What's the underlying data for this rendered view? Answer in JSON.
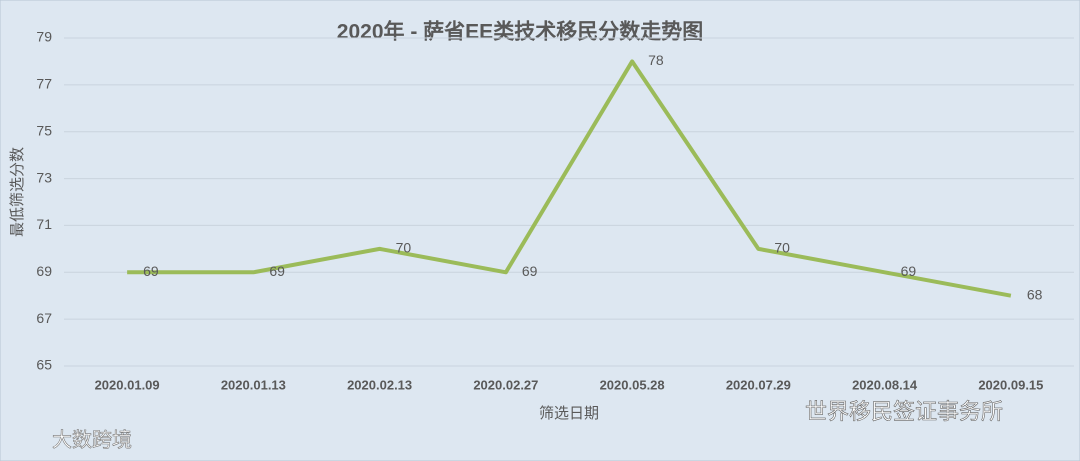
{
  "chart_data": {
    "type": "line",
    "title": "2020年 - 萨省EE类技术移民分数走势图",
    "x_label": "筛选日期",
    "y_label": "最低筛选分数",
    "categories": [
      "2020.01.09",
      "2020.01.13",
      "2020.02.13",
      "2020.02.27",
      "2020.05.28",
      "2020.07.29",
      "2020.08.14",
      "2020.09.15"
    ],
    "values": [
      69,
      69,
      70,
      69,
      78,
      70,
      69,
      68
    ],
    "color": "#9bbb59",
    "ylim": [
      65,
      79
    ],
    "yticks": [
      65,
      67,
      69,
      71,
      73,
      75,
      77,
      79
    ],
    "grid": true
  },
  "watermarks": [
    "大数跨境",
    "世界移民签证事务所"
  ]
}
